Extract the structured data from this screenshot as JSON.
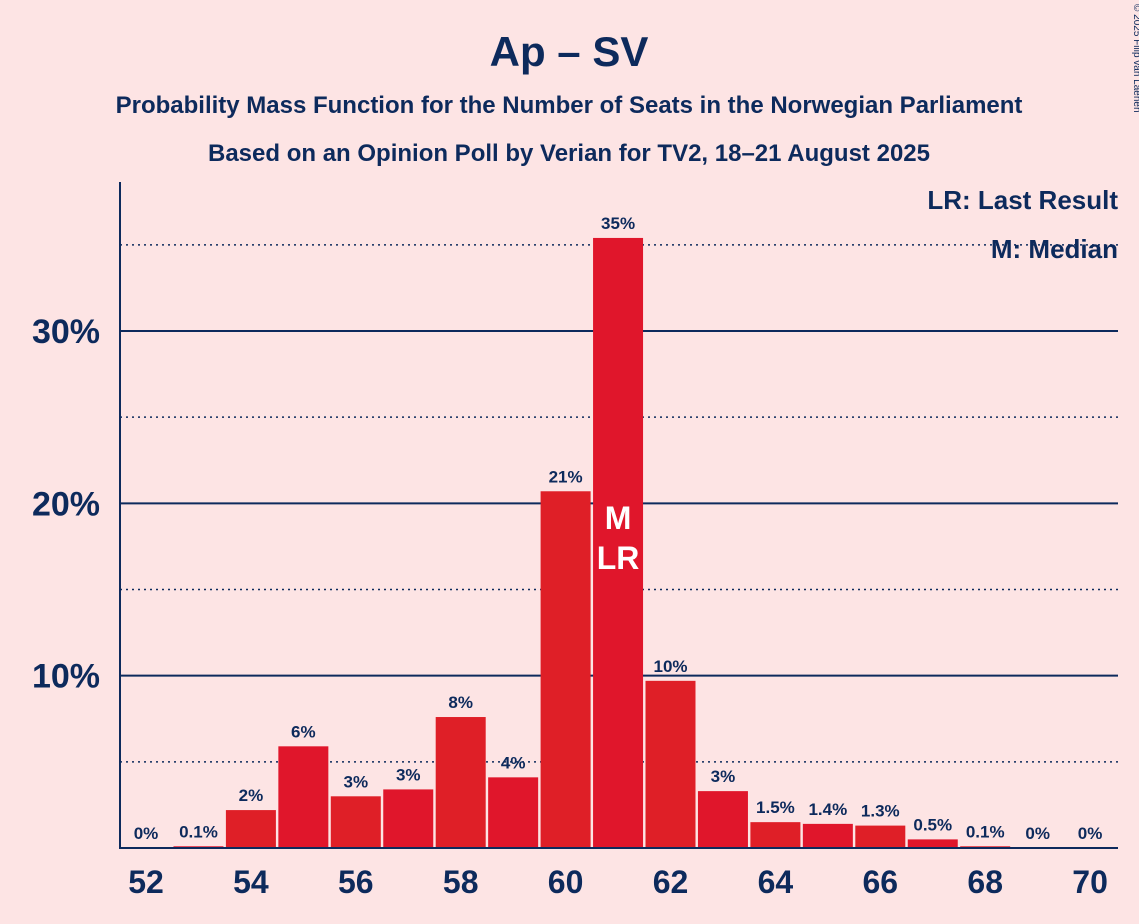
{
  "chart_data": {
    "type": "bar",
    "title": "Ap – SV",
    "subtitle_line1": "Probability Mass Function for the Number of Seats in the Norwegian Parliament",
    "subtitle_line2": "Based on an Opinion Poll by Verian for TV2, 18–21 August 2025",
    "copyright": "© 2025 Filip van Laenen",
    "legend": {
      "last_result": "LR: Last Result",
      "median": "M: Median",
      "placement": "top-right"
    },
    "categories": [
      52,
      53,
      54,
      55,
      56,
      57,
      58,
      59,
      60,
      61,
      62,
      63,
      64,
      65,
      66,
      67,
      68,
      69,
      70
    ],
    "values": [
      0,
      0.1,
      2.2,
      5.9,
      3.0,
      3.4,
      7.6,
      4.1,
      20.7,
      35.4,
      9.7,
      3.3,
      1.5,
      1.4,
      1.3,
      0.5,
      0.1,
      0,
      0
    ],
    "data_labels": [
      "0%",
      "0.1%",
      "2%",
      "6%",
      "3%",
      "3%",
      "8%",
      "4%",
      "21%",
      "35%",
      "10%",
      "3%",
      "1.5%",
      "1.4%",
      "1.3%",
      "0.5%",
      "0.1%",
      "0%",
      "0%"
    ],
    "x_tick_labels": [
      "52",
      "54",
      "56",
      "58",
      "60",
      "62",
      "64",
      "66",
      "68",
      "70"
    ],
    "y_tick_labels": [
      "10%",
      "20%",
      "30%"
    ],
    "ylim": [
      0,
      38.5
    ],
    "median_seat": 61,
    "last_result_seat": 61,
    "median_mark": "M",
    "last_result_mark": "LR",
    "colors": {
      "background": "#fde4e4",
      "bar_primary": "#e0162b",
      "bar_alternate": "#df1f27",
      "text": "#0d2a5c",
      "grid": "#0d2a5c"
    }
  }
}
